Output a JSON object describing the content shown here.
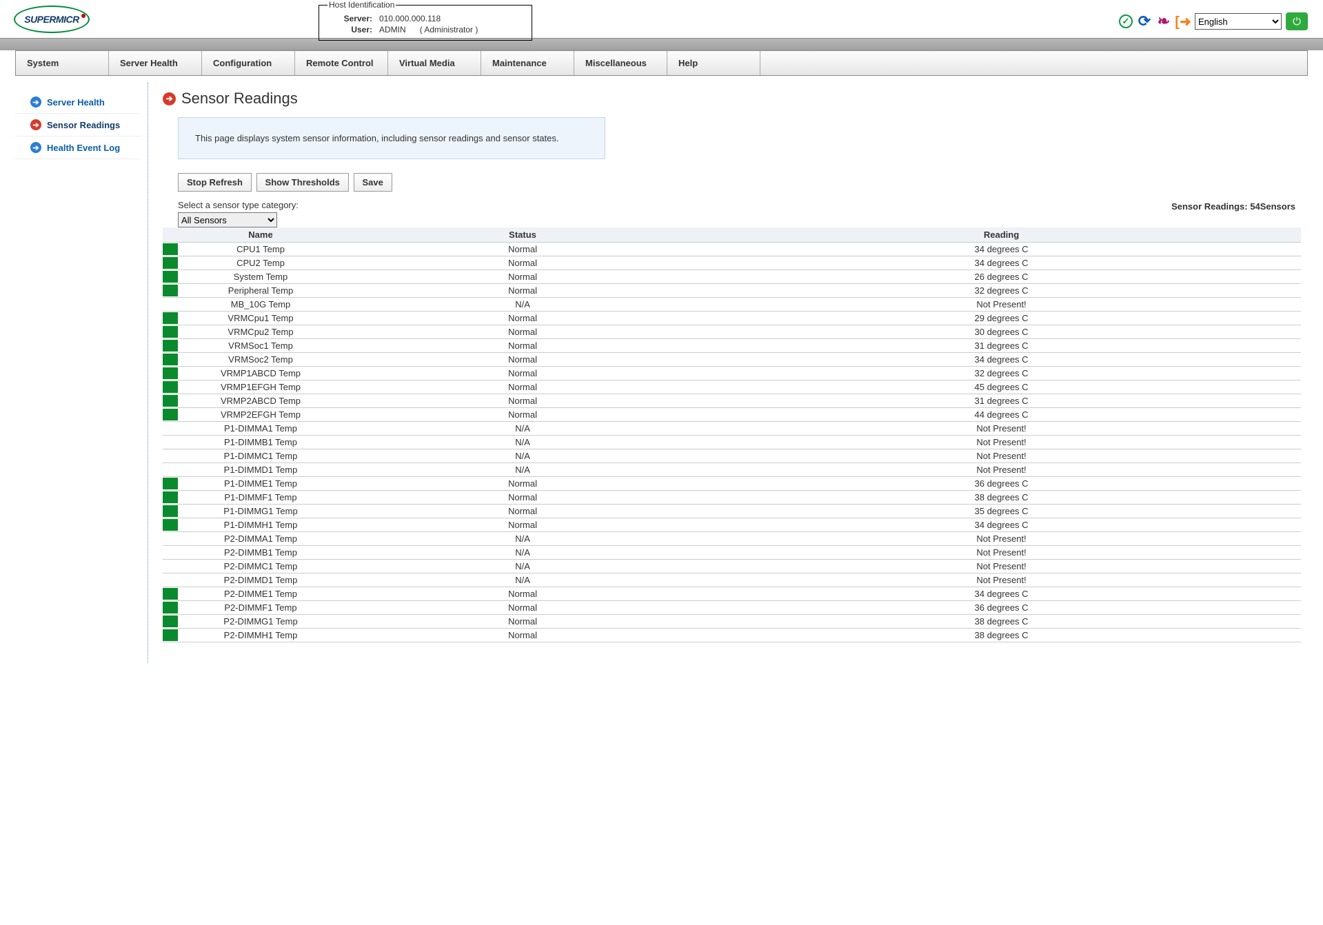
{
  "header": {
    "logo_text": "SUPERMICR",
    "host_ident": {
      "legend": "Host Identification",
      "server_label": "Server:",
      "server_value": "010.000.000.118",
      "user_label": "User:",
      "user_value": "ADMIN",
      "role": "( Administrator )"
    },
    "language": "English"
  },
  "nav": {
    "items": [
      "System",
      "Server Health",
      "Configuration",
      "Remote Control",
      "Virtual Media",
      "Maintenance",
      "Miscellaneous",
      "Help"
    ]
  },
  "sidebar": {
    "items": [
      {
        "label": "Server Health",
        "icon": "blue",
        "active": false
      },
      {
        "label": "Sensor Readings",
        "icon": "red",
        "active": true
      },
      {
        "label": "Health Event Log",
        "icon": "blue",
        "active": false
      }
    ]
  },
  "page": {
    "title": "Sensor Readings",
    "info": "This page displays system sensor information, including sensor readings and sensor states.",
    "buttons": {
      "stop": "Stop Refresh",
      "thresh": "Show Thresholds",
      "save": "Save"
    },
    "select_label": "Select a sensor type category:",
    "sensor_count_label": "Sensor Readings: ",
    "sensor_count_value": "54",
    "sensor_count_suffix": "Sensors",
    "type_select": "All Sensors",
    "table_headers": {
      "name": "Name",
      "status": "Status",
      "reading": "Reading"
    }
  },
  "sensors": [
    {
      "green": true,
      "name": "CPU1 Temp",
      "status": "Normal",
      "reading": "34 degrees C"
    },
    {
      "green": true,
      "name": "CPU2 Temp",
      "status": "Normal",
      "reading": "34 degrees C"
    },
    {
      "green": true,
      "name": "System Temp",
      "status": "Normal",
      "reading": "26 degrees C"
    },
    {
      "green": true,
      "name": "Peripheral Temp",
      "status": "Normal",
      "reading": "32 degrees C"
    },
    {
      "green": false,
      "name": "MB_10G Temp",
      "status": "N/A",
      "reading": "Not Present!"
    },
    {
      "green": true,
      "name": "VRMCpu1 Temp",
      "status": "Normal",
      "reading": "29 degrees C"
    },
    {
      "green": true,
      "name": "VRMCpu2 Temp",
      "status": "Normal",
      "reading": "30 degrees C"
    },
    {
      "green": true,
      "name": "VRMSoc1 Temp",
      "status": "Normal",
      "reading": "31 degrees C"
    },
    {
      "green": true,
      "name": "VRMSoc2 Temp",
      "status": "Normal",
      "reading": "34 degrees C"
    },
    {
      "green": true,
      "name": "VRMP1ABCD Temp",
      "status": "Normal",
      "reading": "32 degrees C"
    },
    {
      "green": true,
      "name": "VRMP1EFGH Temp",
      "status": "Normal",
      "reading": "45 degrees C"
    },
    {
      "green": true,
      "name": "VRMP2ABCD Temp",
      "status": "Normal",
      "reading": "31 degrees C"
    },
    {
      "green": true,
      "name": "VRMP2EFGH Temp",
      "status": "Normal",
      "reading": "44 degrees C"
    },
    {
      "green": false,
      "name": "P1-DIMMA1 Temp",
      "status": "N/A",
      "reading": "Not Present!"
    },
    {
      "green": false,
      "name": "P1-DIMMB1 Temp",
      "status": "N/A",
      "reading": "Not Present!"
    },
    {
      "green": false,
      "name": "P1-DIMMC1 Temp",
      "status": "N/A",
      "reading": "Not Present!"
    },
    {
      "green": false,
      "name": "P1-DIMMD1 Temp",
      "status": "N/A",
      "reading": "Not Present!"
    },
    {
      "green": true,
      "name": "P1-DIMME1 Temp",
      "status": "Normal",
      "reading": "36 degrees C"
    },
    {
      "green": true,
      "name": "P1-DIMMF1 Temp",
      "status": "Normal",
      "reading": "38 degrees C"
    },
    {
      "green": true,
      "name": "P1-DIMMG1 Temp",
      "status": "Normal",
      "reading": "35 degrees C"
    },
    {
      "green": true,
      "name": "P1-DIMMH1 Temp",
      "status": "Normal",
      "reading": "34 degrees C"
    },
    {
      "green": false,
      "name": "P2-DIMMA1 Temp",
      "status": "N/A",
      "reading": "Not Present!"
    },
    {
      "green": false,
      "name": "P2-DIMMB1 Temp",
      "status": "N/A",
      "reading": "Not Present!"
    },
    {
      "green": false,
      "name": "P2-DIMMC1 Temp",
      "status": "N/A",
      "reading": "Not Present!"
    },
    {
      "green": false,
      "name": "P2-DIMMD1 Temp",
      "status": "N/A",
      "reading": "Not Present!"
    },
    {
      "green": true,
      "name": "P2-DIMME1 Temp",
      "status": "Normal",
      "reading": "34 degrees C"
    },
    {
      "green": true,
      "name": "P2-DIMMF1 Temp",
      "status": "Normal",
      "reading": "36 degrees C"
    },
    {
      "green": true,
      "name": "P2-DIMMG1 Temp",
      "status": "Normal",
      "reading": "38 degrees C"
    },
    {
      "green": true,
      "name": "P2-DIMMH1 Temp",
      "status": "Normal",
      "reading": "38 degrees C"
    }
  ]
}
